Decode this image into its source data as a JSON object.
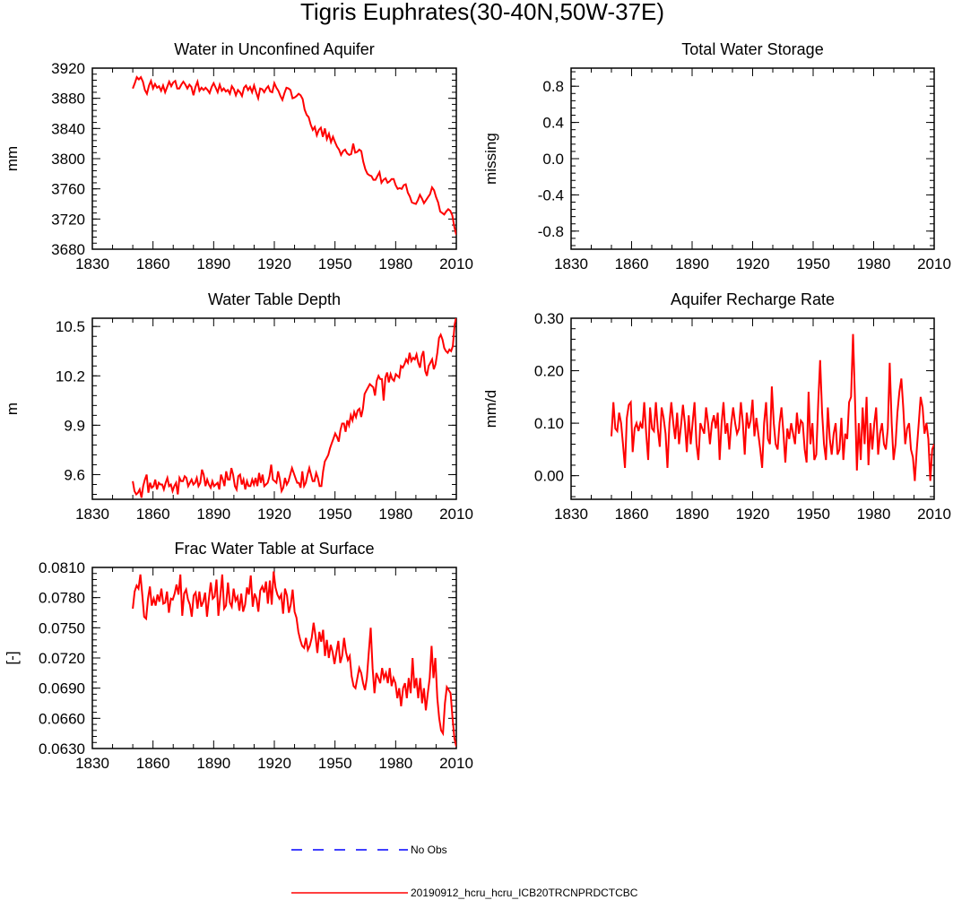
{
  "figure": {
    "title": "Tigris Euphrates(30-40N,50W-37E)"
  },
  "legend": {
    "items": [
      {
        "label": "No Obs",
        "color": "#0000ff",
        "style": "dashed"
      },
      {
        "label": "20190912_hcru_hcru_ICB20TRCNPRDCTCBC",
        "color": "#ff0000",
        "style": "solid"
      }
    ]
  },
  "chart_data": [
    {
      "id": "unconfined",
      "type": "line",
      "title": "Water in Unconfined Aquifer",
      "ylabel": "mm",
      "xlabel": "",
      "xlim": [
        1830,
        2010
      ],
      "ylim": [
        3680,
        3920
      ],
      "xticks": [
        1830,
        1860,
        1890,
        1920,
        1950,
        1980,
        2010
      ],
      "yticks": [
        "3680",
        "3720",
        "3760",
        "3800",
        "3840",
        "3880",
        "3920"
      ],
      "color": "#ff0000",
      "x_start": 1850,
      "values": [
        3893,
        3900,
        3908,
        3905,
        3908,
        3902,
        3891,
        3886,
        3897,
        3903,
        3893,
        3899,
        3894,
        3896,
        3890,
        3897,
        3888,
        3895,
        3902,
        3896,
        3901,
        3903,
        3893,
        3893,
        3898,
        3902,
        3898,
        3893,
        3898,
        3895,
        3884,
        3895,
        3902,
        3890,
        3894,
        3891,
        3894,
        3891,
        3887,
        3895,
        3900,
        3894,
        3888,
        3898,
        3890,
        3893,
        3889,
        3891,
        3886,
        3896,
        3892,
        3884,
        3891,
        3888,
        3883,
        3894,
        3897,
        3891,
        3895,
        3888,
        3897,
        3888,
        3880,
        3893,
        3892,
        3888,
        3893,
        3896,
        3889,
        3888,
        3900,
        3894,
        3890,
        3883,
        3878,
        3887,
        3894,
        3893,
        3891,
        3880,
        3881,
        3883,
        3886,
        3884,
        3879,
        3865,
        3858,
        3855,
        3845,
        3838,
        3842,
        3831,
        3838,
        3841,
        3829,
        3840,
        3826,
        3833,
        3822,
        3829,
        3822,
        3816,
        3812,
        3805,
        3810,
        3812,
        3807,
        3805,
        3806,
        3820,
        3808,
        3809,
        3812,
        3810,
        3796,
        3786,
        3780,
        3778,
        3777,
        3772,
        3772,
        3777,
        3782,
        3768,
        3772,
        3774,
        3768,
        3770,
        3773,
        3773,
        3765,
        3760,
        3761,
        3760,
        3765,
        3766,
        3755,
        3750,
        3742,
        3741,
        3740,
        3745,
        3752,
        3747,
        3741,
        3745,
        3749,
        3753,
        3762,
        3758,
        3749,
        3742,
        3730,
        3728,
        3726,
        3730,
        3733,
        3731,
        3725,
        3710,
        3699
      ]
    },
    {
      "id": "tws",
      "type": "line",
      "title": "Total Water Storage",
      "ylabel": "missing",
      "xlabel": "",
      "xlim": [
        1830,
        2010
      ],
      "ylim": [
        -1,
        1
      ],
      "xticks": [
        1830,
        1860,
        1890,
        1920,
        1950,
        1980,
        2010
      ],
      "yticks": [
        "-0.8",
        "-0.4",
        "0.0",
        "0.4",
        "0.8"
      ],
      "color": "#ff0000",
      "x_start": 1850,
      "values": []
    },
    {
      "id": "wtd",
      "type": "line",
      "title": "Water Table Depth",
      "ylabel": "m",
      "xlabel": "",
      "xlim": [
        1830,
        2010
      ],
      "ylim": [
        9.45,
        10.55
      ],
      "xticks": [
        1830,
        1860,
        1890,
        1920,
        1950,
        1980,
        2010
      ],
      "yticks": [
        "9.6",
        "9.9",
        "10.2",
        "10.5"
      ],
      "color": "#ff0000",
      "x_start": 1850,
      "values": [
        9.56,
        9.5,
        9.48,
        9.49,
        9.51,
        9.46,
        9.53,
        9.57,
        9.6,
        9.49,
        9.55,
        9.52,
        9.53,
        9.57,
        9.51,
        9.55,
        9.54,
        9.54,
        9.51,
        9.55,
        9.58,
        9.53,
        9.54,
        9.5,
        9.53,
        9.55,
        9.48,
        9.58,
        9.56,
        9.56,
        9.59,
        9.58,
        9.53,
        9.55,
        9.57,
        9.54,
        9.55,
        9.58,
        9.53,
        9.55,
        9.63,
        9.6,
        9.53,
        9.57,
        9.54,
        9.52,
        9.56,
        9.53,
        9.54,
        9.55,
        9.51,
        9.6,
        9.57,
        9.53,
        9.62,
        9.57,
        9.57,
        9.64,
        9.6,
        9.53,
        9.51,
        9.59,
        9.6,
        9.54,
        9.57,
        9.51,
        9.56,
        9.53,
        9.53,
        9.57,
        9.54,
        9.58,
        9.53,
        9.61,
        9.55,
        9.6,
        9.53,
        9.54,
        9.55,
        9.59,
        9.66,
        9.57,
        9.56,
        9.55,
        9.62,
        9.57,
        9.5,
        9.52,
        9.58,
        9.54,
        9.56,
        9.6,
        9.64,
        9.61,
        9.58,
        9.55,
        9.55,
        9.52,
        9.62,
        9.53,
        9.55,
        9.6,
        9.64,
        9.6,
        9.56,
        9.56,
        9.61,
        9.58,
        9.53,
        9.53,
        9.62,
        9.68,
        9.7,
        9.72,
        9.76,
        9.79,
        9.82,
        9.85,
        9.83,
        9.8,
        9.87,
        9.91,
        9.91,
        9.86,
        9.93,
        9.9,
        9.96,
        9.93,
        9.98,
        9.95,
        9.99,
        10.0,
        9.95,
        10.0,
        10.09,
        10.11,
        10.13,
        10.15,
        10.14,
        10.13,
        10.08,
        10.17,
        10.2,
        10.18,
        10.18,
        10.05,
        10.19,
        10.22,
        10.16,
        10.21,
        10.18,
        10.17,
        10.21,
        10.2,
        10.19,
        10.26,
        10.25,
        10.27,
        10.3,
        10.28,
        10.34,
        10.29,
        10.31,
        10.3,
        10.33,
        10.28,
        10.25,
        10.32,
        10.35,
        10.23,
        10.2,
        10.26,
        10.28,
        10.3,
        10.24,
        10.27,
        10.34,
        10.43,
        10.45,
        10.42,
        10.37,
        10.35,
        10.34,
        10.36,
        10.35,
        10.38,
        10.51,
        10.56
      ]
    },
    {
      "id": "recharge",
      "type": "line",
      "title": "Aquifer Recharge Rate",
      "ylabel": "mm/d",
      "xlabel": "",
      "xlim": [
        1830,
        2010
      ],
      "ylim": [
        -0.045,
        0.3
      ],
      "xticks": [
        1830,
        1860,
        1890,
        1920,
        1950,
        1980,
        2010
      ],
      "yticks": [
        "0.00",
        "0.10",
        "0.20",
        "0.30"
      ],
      "color": "#ff0000",
      "x_start": 1850,
      "values": [
        0.075,
        0.14,
        0.09,
        0.085,
        0.12,
        0.1,
        0.06,
        0.015,
        0.11,
        0.135,
        0.14,
        0.045,
        0.09,
        0.1,
        0.085,
        0.1,
        0.09,
        0.14,
        0.08,
        0.03,
        0.13,
        0.09,
        0.085,
        0.14,
        0.09,
        0.055,
        0.13,
        0.11,
        0.08,
        0.015,
        0.1,
        0.14,
        0.1,
        0.07,
        0.12,
        0.06,
        0.095,
        0.135,
        0.1,
        0.045,
        0.115,
        0.06,
        0.1,
        0.14,
        0.06,
        0.03,
        0.1,
        0.09,
        0.08,
        0.13,
        0.1,
        0.06,
        0.1,
        0.115,
        0.09,
        0.12,
        0.03,
        0.1,
        0.14,
        0.08,
        0.1,
        0.05,
        0.1,
        0.13,
        0.1,
        0.08,
        0.09,
        0.14,
        0.1,
        0.04,
        0.12,
        0.09,
        0.105,
        0.145,
        0.075,
        0.11,
        0.08,
        0.05,
        0.015,
        0.1,
        0.14,
        0.07,
        0.06,
        0.17,
        0.1,
        0.06,
        0.05,
        0.1,
        0.13,
        0.08,
        0.025,
        0.09,
        0.07,
        0.1,
        0.08,
        0.06,
        0.12,
        0.08,
        0.105,
        0.1,
        0.05,
        0.025,
        0.16,
        0.06,
        0.1,
        0.03,
        0.04,
        0.14,
        0.22,
        0.12,
        0.06,
        0.03,
        0.13,
        0.07,
        0.04,
        0.08,
        0.1,
        0.04,
        0.05,
        0.11,
        0.03,
        0.08,
        0.07,
        0.14,
        0.15,
        0.27,
        0.15,
        0.01,
        0.1,
        0.03,
        0.13,
        0.06,
        0.15,
        0.02,
        0.1,
        0.05,
        0.1,
        0.13,
        0.04,
        0.08,
        0.1,
        0.06,
        0.05,
        0.09,
        0.215,
        0.1,
        0.03,
        0.06,
        0.12,
        0.16,
        0.185,
        0.13,
        0.06,
        0.09,
        0.1,
        0.05,
        0.035,
        -0.01,
        0.05,
        0.1,
        0.15,
        0.13,
        0.08,
        0.1,
        0.07,
        -0.01,
        0.05,
        0.06
      ]
    },
    {
      "id": "fracwt",
      "type": "line",
      "title": "Frac Water Table at Surface",
      "ylabel": "[-]",
      "xlabel": "",
      "xlim": [
        1830,
        2010
      ],
      "ylim": [
        0.063,
        0.081
      ],
      "xticks": [
        1830,
        1860,
        1890,
        1920,
        1950,
        1980,
        2010
      ],
      "yticks": [
        "0.0630",
        "0.0660",
        "0.0690",
        "0.0720",
        "0.0750",
        "0.0780",
        "0.0810"
      ],
      "color": "#ff0000",
      "x_start": 1850,
      "values": [
        0.0769,
        0.0786,
        0.0792,
        0.0789,
        0.0803,
        0.0783,
        0.0761,
        0.0759,
        0.0779,
        0.0791,
        0.0772,
        0.0779,
        0.0772,
        0.0783,
        0.0776,
        0.0789,
        0.0774,
        0.0775,
        0.0786,
        0.0765,
        0.0779,
        0.0778,
        0.0784,
        0.0793,
        0.0783,
        0.0803,
        0.0762,
        0.0784,
        0.0788,
        0.0778,
        0.0773,
        0.0761,
        0.0782,
        0.0785,
        0.0769,
        0.0786,
        0.0771,
        0.0776,
        0.0785,
        0.0761,
        0.0779,
        0.0795,
        0.0779,
        0.0781,
        0.0798,
        0.0762,
        0.0782,
        0.0803,
        0.0769,
        0.0772,
        0.0795,
        0.0775,
        0.0771,
        0.0789,
        0.0777,
        0.0781,
        0.0767,
        0.0784,
        0.0766,
        0.0773,
        0.079,
        0.0783,
        0.0802,
        0.0771,
        0.0784,
        0.0779,
        0.0766,
        0.0787,
        0.0791,
        0.0785,
        0.0796,
        0.0774,
        0.0797,
        0.0773,
        0.0806,
        0.079,
        0.0783,
        0.0779,
        0.0783,
        0.0764,
        0.0789,
        0.0782,
        0.0765,
        0.0773,
        0.0788,
        0.0766,
        0.076,
        0.0746,
        0.0738,
        0.0732,
        0.073,
        0.074,
        0.0728,
        0.0732,
        0.074,
        0.0755,
        0.0742,
        0.0725,
        0.0746,
        0.0736,
        0.0748,
        0.0722,
        0.0738,
        0.072,
        0.0733,
        0.0726,
        0.0714,
        0.0726,
        0.0737,
        0.0715,
        0.0722,
        0.074,
        0.0726,
        0.0718,
        0.0722,
        0.0702,
        0.0692,
        0.069,
        0.07,
        0.071,
        0.0705,
        0.0695,
        0.0688,
        0.07,
        0.0725,
        0.075,
        0.071,
        0.0685,
        0.0705,
        0.07,
        0.0695,
        0.071,
        0.07,
        0.0705,
        0.0695,
        0.071,
        0.0692,
        0.07,
        0.0695,
        0.068,
        0.069,
        0.0672,
        0.069,
        0.0695,
        0.068,
        0.07,
        0.0685,
        0.072,
        0.069,
        0.07,
        0.068,
        0.07,
        0.0675,
        0.069,
        0.0668,
        0.0685,
        0.07,
        0.0732,
        0.07,
        0.072,
        0.068,
        0.066,
        0.0648,
        0.0645,
        0.0675,
        0.0691,
        0.0688,
        0.0685,
        0.066,
        0.064,
        0.0632
      ]
    }
  ]
}
